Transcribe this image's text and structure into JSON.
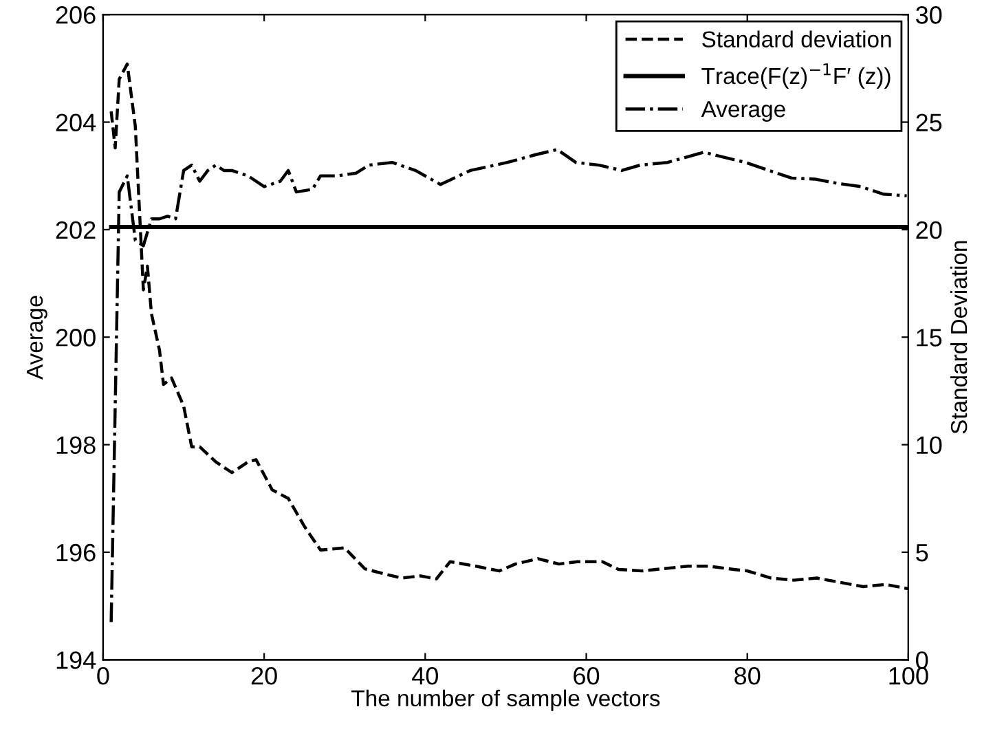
{
  "chart_data": {
    "type": "line",
    "xlabel": "The number of sample vectors",
    "ylabel": "Average",
    "y2label": "Standard Deviation",
    "xlim": [
      0,
      100
    ],
    "xticks": [
      0,
      20,
      40,
      60,
      80,
      100
    ],
    "ylim": [
      194,
      206
    ],
    "yticks": [
      194,
      196,
      198,
      200,
      202,
      204,
      206
    ],
    "y2lim": [
      0,
      30
    ],
    "y2ticks": [
      0,
      5,
      10,
      15,
      20,
      25,
      30
    ],
    "grid": false,
    "legend": "top right",
    "series": [
      {
        "name": "Standard deviation",
        "color": "#000000",
        "line_style": "dashed",
        "axis": "y2",
        "x": [
          1,
          1.5,
          2,
          3,
          4,
          5,
          5.5,
          6,
          7,
          7.5,
          8.5,
          10,
          11,
          12,
          14,
          16,
          18,
          19,
          21,
          23,
          25,
          27,
          30,
          32.5,
          34.8,
          37.1,
          39.4,
          41.4,
          43.1,
          46.3,
          49.2,
          51.2,
          54,
          56.6,
          58.9,
          62,
          64,
          66.9,
          69.5,
          72.6,
          75.2,
          78.3,
          80,
          82.9,
          85.8,
          88.6,
          91.5,
          94.4,
          97.2,
          100
        ],
        "values": [
          25.5,
          23.8,
          27.0,
          27.7,
          24.8,
          17.2,
          18.3,
          16.1,
          14.4,
          12.8,
          13.1,
          11.8,
          9.9,
          9.9,
          9.2,
          8.7,
          9.2,
          9.3,
          7.9,
          7.5,
          6.2,
          5.1,
          5.2,
          4.23,
          4.0,
          3.8,
          3.9,
          3.76,
          4.56,
          4.35,
          4.13,
          4.45,
          4.7,
          4.45,
          4.56,
          4.56,
          4.2,
          4.13,
          4.23,
          4.35,
          4.35,
          4.2,
          4.13,
          3.8,
          3.7,
          3.8,
          3.6,
          3.4,
          3.5,
          3.3
        ]
      },
      {
        "name": "Trace(F(z)$^{−1}$F′ (z))",
        "color": "#000000",
        "line_style": "solid",
        "axis": "y",
        "x": [
          1,
          100
        ],
        "values": [
          202.05,
          202.05
        ]
      },
      {
        "name": "Average",
        "color": "#000000",
        "line_style": "dashdot",
        "axis": "y",
        "x": [
          1,
          2,
          3,
          4,
          5,
          6,
          7,
          8,
          9,
          10,
          11,
          12,
          13,
          14,
          15,
          16,
          18,
          20,
          22,
          23,
          24,
          26,
          27,
          29,
          31.4,
          33,
          35.9,
          38.8,
          41.9,
          45.6,
          50.2,
          53.6,
          56.4,
          58.7,
          61.6,
          64.4,
          66.7,
          70.1,
          74.6,
          77,
          79.8,
          82.7,
          85.5,
          88.4,
          91.2,
          94.1,
          96.9,
          99.8
        ],
        "values": [
          194.7,
          202.7,
          203.0,
          201.8,
          201.7,
          202.2,
          202.2,
          202.25,
          202.2,
          203.1,
          203.2,
          202.9,
          203.1,
          203.2,
          203.1,
          203.1,
          203.0,
          202.8,
          202.9,
          203.1,
          202.7,
          202.75,
          203.0,
          203.0,
          203.05,
          203.2,
          203.25,
          203.1,
          202.84,
          203.1,
          203.25,
          203.39,
          203.49,
          203.25,
          203.2,
          203.1,
          203.2,
          203.25,
          203.44,
          203.35,
          203.25,
          203.1,
          202.96,
          202.94,
          202.86,
          202.8,
          202.66,
          202.63
        ]
      }
    ]
  }
}
